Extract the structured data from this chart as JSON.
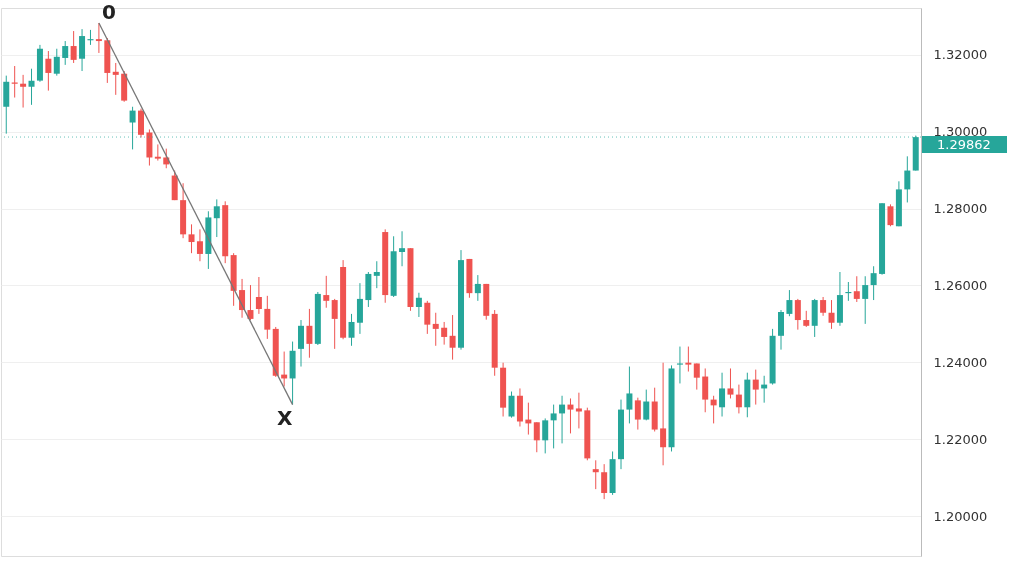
{
  "chart_data": {
    "type": "candlestick",
    "categories": [
      null,
      null,
      null,
      null,
      null,
      null,
      null,
      null,
      null,
      null,
      null,
      null,
      null,
      null,
      null,
      null,
      null,
      null,
      null,
      null,
      null,
      null,
      null,
      null,
      null,
      null,
      null,
      null,
      null,
      null,
      null,
      null,
      null,
      null,
      null,
      null,
      null,
      null,
      null,
      null,
      null,
      null,
      null,
      null,
      null,
      null,
      null,
      null,
      null,
      null,
      null,
      null,
      null,
      null,
      null,
      null,
      null,
      null,
      null,
      null,
      null,
      null,
      null,
      null,
      null,
      null,
      null,
      null,
      null,
      null,
      null,
      null,
      null,
      null,
      null,
      null,
      null,
      null,
      null,
      null,
      null,
      null,
      null,
      null,
      null,
      null,
      null,
      null,
      null,
      null,
      null,
      null,
      null,
      null,
      null,
      null,
      null,
      null,
      null,
      null,
      null,
      null,
      null,
      null,
      null,
      null,
      null,
      null,
      null
    ],
    "ohlc": [
      [
        1.3065,
        1.3146,
        1.2995,
        1.313
      ],
      [
        1.3128,
        1.3171,
        1.3089,
        1.3125
      ],
      [
        1.3125,
        1.3148,
        1.3063,
        1.3117
      ],
      [
        1.3117,
        1.3164,
        1.307,
        1.3133
      ],
      [
        1.3133,
        1.3226,
        1.313,
        1.3216
      ],
      [
        1.319,
        1.321,
        1.3107,
        1.3153
      ],
      [
        1.3151,
        1.3216,
        1.3146,
        1.3195
      ],
      [
        1.3192,
        1.3236,
        1.3174,
        1.3223
      ],
      [
        1.3223,
        1.3262,
        1.3179,
        1.3187
      ],
      [
        1.319,
        1.3267,
        1.3158,
        1.3249
      ],
      [
        1.3238,
        1.3265,
        1.3226,
        1.3241
      ],
      [
        1.3241,
        1.3283,
        1.3205,
        1.3236
      ],
      [
        1.3238,
        1.3244,
        1.3127,
        1.3153
      ],
      [
        1.3156,
        1.3179,
        1.3096,
        1.3148
      ],
      [
        1.3151,
        1.3158,
        1.3078,
        1.3081
      ],
      [
        1.3024,
        1.3065,
        1.2954,
        1.3055
      ],
      [
        1.3055,
        1.306,
        1.2985,
        1.2992
      ],
      [
        1.2998,
        1.3006,
        1.2912,
        1.2933
      ],
      [
        1.2935,
        1.2967,
        1.2925,
        1.293
      ],
      [
        1.2933,
        1.2956,
        1.2905,
        1.2915
      ],
      [
        1.2886,
        1.2899,
        1.2822,
        1.2822
      ],
      [
        1.2822,
        1.2866,
        1.2723,
        1.2733
      ],
      [
        1.2733,
        1.2759,
        1.2684,
        1.2713
      ],
      [
        1.2715,
        1.2746,
        1.2663,
        1.2682
      ],
      [
        1.2682,
        1.2793,
        1.2643,
        1.2777
      ],
      [
        1.2775,
        1.2824,
        1.2726,
        1.2806
      ],
      [
        1.2809,
        1.2819,
        1.2658,
        1.2676
      ],
      [
        1.2679,
        1.2684,
        1.2547,
        1.2586
      ],
      [
        1.2588,
        1.2617,
        1.2516,
        1.2536
      ],
      [
        1.2536,
        1.2601,
        1.251,
        1.2513
      ],
      [
        1.257,
        1.2622,
        1.2526,
        1.2539
      ],
      [
        1.2539,
        1.2573,
        1.2461,
        1.2485
      ],
      [
        1.2487,
        1.2492,
        1.2362,
        1.2365
      ],
      [
        1.2368,
        1.2428,
        1.2337,
        1.2358
      ],
      [
        1.2358,
        1.2454,
        1.229,
        1.243
      ],
      [
        1.2435,
        1.251,
        1.2389,
        1.2495
      ],
      [
        1.2495,
        1.2539,
        1.2412,
        1.2448
      ],
      [
        1.2448,
        1.2583,
        1.2445,
        1.2578
      ],
      [
        1.2575,
        1.2625,
        1.2542,
        1.256
      ],
      [
        1.2562,
        1.2565,
        1.2435,
        1.2513
      ],
      [
        1.2648,
        1.2666,
        1.246,
        1.2464
      ],
      [
        1.2464,
        1.2526,
        1.2443,
        1.2505
      ],
      [
        1.2503,
        1.2606,
        1.2474,
        1.2565
      ],
      [
        1.2562,
        1.2635,
        1.2544,
        1.263
      ],
      [
        1.2625,
        1.2663,
        1.2593,
        1.2635
      ],
      [
        1.2739,
        1.2746,
        1.2555,
        1.2575
      ],
      [
        1.2573,
        1.2728,
        1.257,
        1.2689
      ],
      [
        1.2687,
        1.2741,
        1.265,
        1.2697
      ],
      [
        1.2697,
        1.2697,
        1.2534,
        1.2544
      ],
      [
        1.2544,
        1.2581,
        1.2518,
        1.2568
      ],
      [
        1.2555,
        1.256,
        1.2474,
        1.2498
      ],
      [
        1.25,
        1.2529,
        1.2443,
        1.2487
      ],
      [
        1.249,
        1.2505,
        1.2446,
        1.2466
      ],
      [
        1.2469,
        1.2523,
        1.2407,
        1.2438
      ],
      [
        1.2438,
        1.2692,
        1.2433,
        1.2666
      ],
      [
        1.2669,
        1.2669,
        1.2568,
        1.258
      ],
      [
        1.258,
        1.2627,
        1.256,
        1.2604
      ],
      [
        1.2604,
        1.2604,
        1.2511,
        1.2521
      ],
      [
        1.2526,
        1.2536,
        1.2365,
        1.2386
      ],
      [
        1.2386,
        1.2399,
        1.2259,
        1.2282
      ],
      [
        1.2259,
        1.2324,
        1.2256,
        1.2313
      ],
      [
        1.2313,
        1.2332,
        1.2233,
        1.2246
      ],
      [
        1.2251,
        1.2295,
        1.2212,
        1.2241
      ],
      [
        1.2244,
        1.2244,
        1.2166,
        1.2197
      ],
      [
        1.2197,
        1.2254,
        1.2163,
        1.2249
      ],
      [
        1.2249,
        1.229,
        1.2176,
        1.2267
      ],
      [
        1.2267,
        1.2313,
        1.2189,
        1.229
      ],
      [
        1.229,
        1.2306,
        1.2215,
        1.2277
      ],
      [
        1.228,
        1.2321,
        1.2228,
        1.2272
      ],
      [
        1.2275,
        1.2282,
        1.2145,
        1.215
      ],
      [
        1.2122,
        1.2145,
        1.207,
        1.2114
      ],
      [
        1.2114,
        1.2135,
        1.2044,
        1.206
      ],
      [
        1.206,
        1.2168,
        1.2055,
        1.2148
      ],
      [
        1.2148,
        1.2303,
        1.2122,
        1.2277
      ],
      [
        1.2277,
        1.2389,
        1.2241,
        1.2319
      ],
      [
        1.2301,
        1.2308,
        1.2225,
        1.2251
      ],
      [
        1.2251,
        1.2329,
        1.2249,
        1.2298
      ],
      [
        1.2298,
        1.2334,
        1.222,
        1.2225
      ],
      [
        1.2228,
        1.2399,
        1.2132,
        1.2179
      ],
      [
        1.2179,
        1.2392,
        1.2168,
        1.2384
      ],
      [
        1.2394,
        1.2441,
        1.2345,
        1.2397
      ],
      [
        1.2399,
        1.2441,
        1.2376,
        1.2394
      ],
      [
        1.2397,
        1.2397,
        1.2329,
        1.236
      ],
      [
        1.2363,
        1.2384,
        1.227,
        1.2303
      ],
      [
        1.2303,
        1.2313,
        1.2241,
        1.2288
      ],
      [
        1.2283,
        1.2373,
        1.2259,
        1.2332
      ],
      [
        1.2332,
        1.2384,
        1.2306,
        1.2316
      ],
      [
        1.2316,
        1.2342,
        1.2267,
        1.2283
      ],
      [
        1.2283,
        1.2373,
        1.2257,
        1.2355
      ],
      [
        1.2355,
        1.2381,
        1.229,
        1.2329
      ],
      [
        1.2332,
        1.2365,
        1.2295,
        1.2342
      ],
      [
        1.2345,
        1.2487,
        1.2342,
        1.2469
      ],
      [
        1.2469,
        1.2536,
        1.2433,
        1.2531
      ],
      [
        1.2526,
        1.2588,
        1.252,
        1.2562
      ],
      [
        1.2562,
        1.2565,
        1.2485,
        1.251
      ],
      [
        1.251,
        1.2534,
        1.2492,
        1.2495
      ],
      [
        1.2495,
        1.2565,
        1.2466,
        1.2562
      ],
      [
        1.2562,
        1.257,
        1.2521,
        1.2529
      ],
      [
        1.2529,
        1.2562,
        1.2487,
        1.2503
      ],
      [
        1.2503,
        1.2635,
        1.2495,
        1.2575
      ],
      [
        1.258,
        1.2609,
        1.256,
        1.2583
      ],
      [
        1.2585,
        1.2624,
        1.2557,
        1.2565
      ],
      [
        1.2565,
        1.2624,
        1.25,
        1.2601
      ],
      [
        1.2601,
        1.265,
        1.2562,
        1.2632
      ],
      [
        1.263,
        1.2814,
        1.2628,
        1.2814
      ],
      [
        1.2806,
        1.2811,
        1.2754,
        1.2757
      ],
      [
        1.2754,
        1.2871,
        1.2754,
        1.285
      ],
      [
        1.285,
        1.2936,
        1.2816,
        1.2899
      ],
      [
        1.2899,
        1.299,
        1.2899,
        1.2986
      ]
    ],
    "series": [
      {
        "type": "line",
        "color": "#777777",
        "values": [
          null,
          null,
          null,
          null,
          null,
          null,
          null,
          null,
          null,
          null,
          null,
          1.3283,
          null,
          null,
          null,
          null,
          null,
          null,
          null,
          null,
          null,
          null,
          null,
          null,
          null,
          null,
          null,
          null,
          null,
          null,
          null,
          null,
          null,
          null,
          1.229,
          null,
          null,
          null,
          null,
          null,
          null,
          null,
          null,
          null,
          null,
          null,
          null,
          null,
          null,
          null,
          null,
          null,
          null,
          null,
          null,
          null,
          null,
          null,
          null,
          null,
          null,
          null,
          null,
          null,
          null,
          null,
          null,
          null,
          null,
          null,
          null,
          null,
          null,
          null,
          null,
          null,
          null,
          null,
          null,
          null,
          null,
          null,
          null,
          null,
          null,
          null,
          null,
          null,
          null,
          null,
          null,
          null,
          null,
          null,
          null,
          null,
          null,
          null,
          null,
          null,
          null,
          null,
          null,
          null,
          null,
          null,
          null,
          null,
          null
        ]
      }
    ],
    "colors": [
      "#26a69a",
      "#ef5350",
      "#ef5350",
      "#26a69a",
      "#26a69a",
      "#ef5350",
      "#26a69a",
      "#26a69a",
      "#ef5350",
      "#26a69a",
      "#26a69a",
      "#ef5350",
      "#ef5350",
      "#ef5350",
      "#ef5350",
      "#26a69a",
      "#ef5350",
      "#ef5350",
      "#ef5350",
      "#ef5350",
      "#ef5350",
      "#ef5350",
      "#ef5350",
      "#ef5350",
      "#26a69a",
      "#26a69a",
      "#ef5350",
      "#ef5350",
      "#ef5350",
      "#ef5350",
      "#ef5350",
      "#ef5350",
      "#ef5350",
      "#ef5350",
      "#26a69a",
      "#26a69a",
      "#ef5350",
      "#26a69a",
      "#ef5350",
      "#ef5350",
      "#ef5350",
      "#26a69a",
      "#26a69a",
      "#26a69a",
      "#26a69a",
      "#ef5350",
      "#26a69a",
      "#26a69a",
      "#ef5350",
      "#26a69a",
      "#ef5350",
      "#ef5350",
      "#ef5350",
      "#ef5350",
      "#26a69a",
      "#ef5350",
      "#26a69a",
      "#ef5350",
      "#ef5350",
      "#ef5350",
      "#26a69a",
      "#ef5350",
      "#ef5350",
      "#ef5350",
      "#26a69a",
      "#26a69a",
      "#26a69a",
      "#ef5350",
      "#ef5350",
      "#ef5350",
      "#ef5350",
      "#ef5350",
      "#26a69a",
      "#26a69a",
      "#26a69a",
      "#ef5350",
      "#26a69a",
      "#ef5350",
      "#ef5350",
      "#26a69a",
      "#26a69a",
      "#ef5350",
      "#ef5350",
      "#ef5350",
      "#ef5350",
      "#26a69a",
      "#ef5350",
      "#ef5350",
      "#26a69a",
      "#ef5350",
      "#26a69a",
      "#26a69a",
      "#26a69a",
      "#26a69a",
      "#ef5350",
      "#ef5350",
      "#26a69a",
      "#ef5350",
      "#ef5350",
      "#26a69a",
      "#26a69a",
      "#ef5350",
      "#26a69a",
      "#26a69a",
      "#26a69a",
      "#ef5350",
      "#26a69a",
      "#26a69a",
      "#26a69a"
    ],
    "annotations": [
      "0",
      "X"
    ],
    "ref_lines": [
      {
        "axis": "y",
        "value": 1.29862,
        "label": "1.29862",
        "color": "#26a69a",
        "line_style": "dotted"
      }
    ],
    "ylim": [
      1.1896,
      1.3322
    ],
    "yticks": [
      {
        "value": 1.2,
        "label": "1.20000"
      },
      {
        "value": 1.22,
        "label": "1.22000"
      },
      {
        "value": 1.24,
        "label": "1.24000"
      },
      {
        "value": 1.26,
        "label": "1.26000"
      },
      {
        "value": 1.28,
        "label": "1.28000"
      },
      {
        "value": 1.3,
        "label": "1.30000"
      },
      {
        "value": 1.32,
        "label": "1.32000"
      }
    ],
    "grid": "y"
  }
}
